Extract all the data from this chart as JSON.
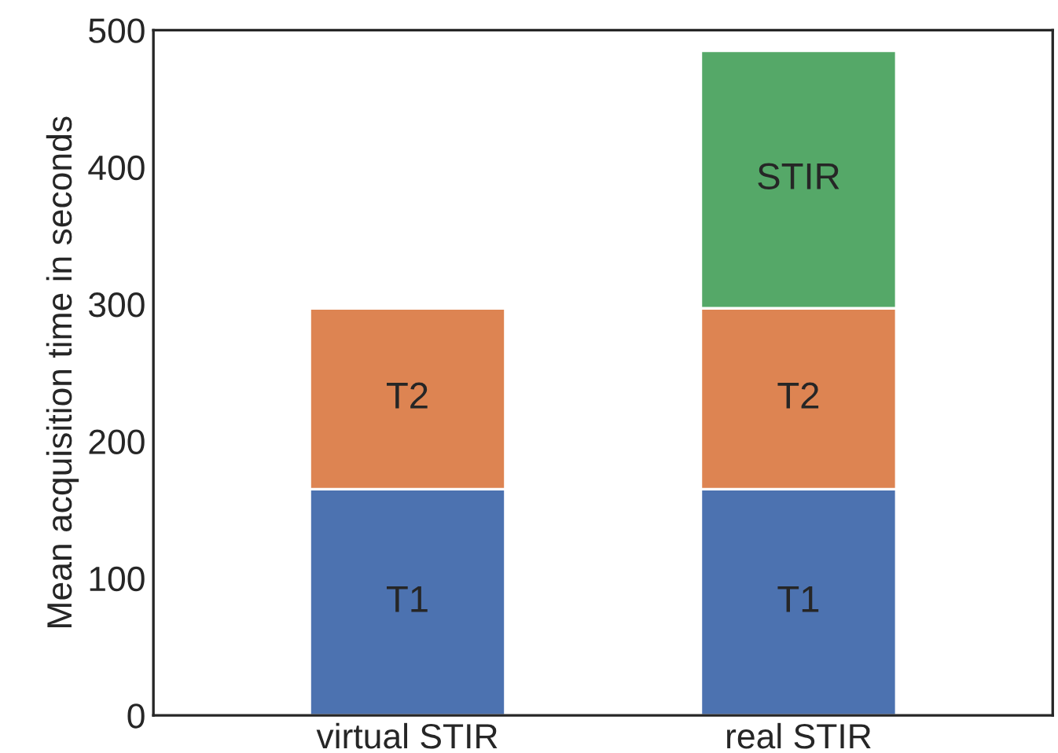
{
  "chart_data": {
    "type": "bar",
    "stacked": true,
    "ylabel": "Mean acquisition time in seconds",
    "categories": [
      "virtual STIR",
      "real STIR"
    ],
    "series": [
      {
        "name": "T1",
        "color": "#4c72b0",
        "values": [
          165,
          165
        ]
      },
      {
        "name": "T2",
        "color": "#dd8452",
        "values": [
          132,
          132
        ]
      },
      {
        "name": "STIR",
        "color": "#55a868",
        "values": [
          null,
          188
        ]
      }
    ],
    "ylim": [
      0,
      500
    ],
    "yticks": [
      0,
      100,
      200,
      300,
      400,
      500
    ],
    "grid": false,
    "legend": false
  }
}
